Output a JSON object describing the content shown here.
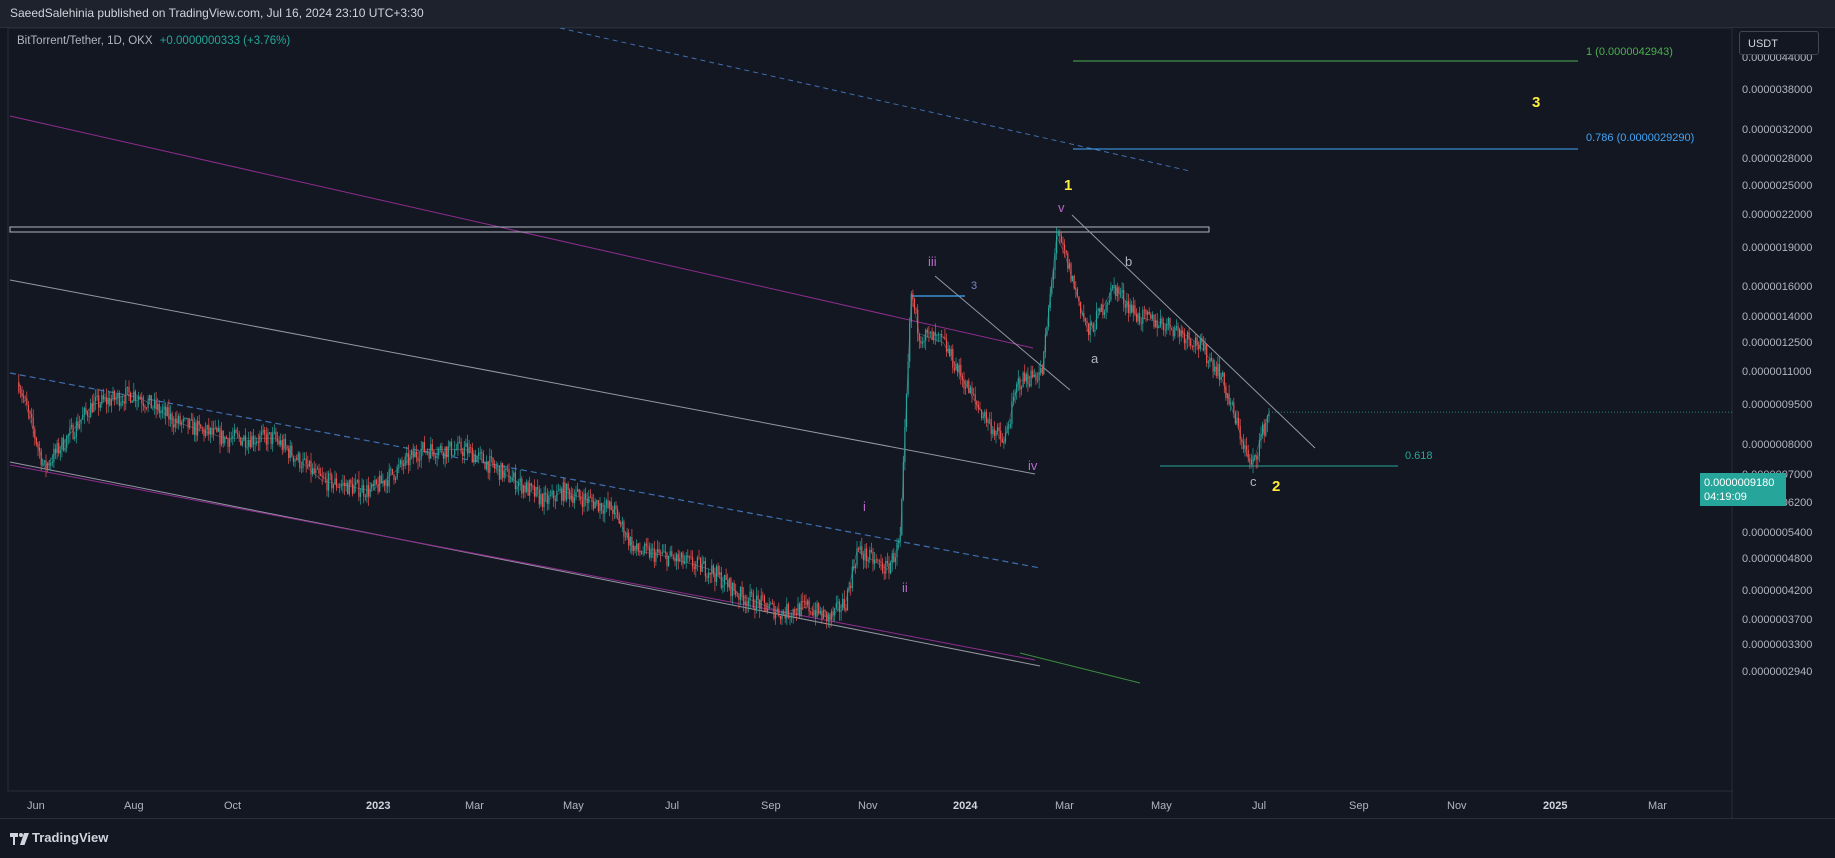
{
  "header": {
    "publish_line": "SaeedSalehinia published on TradingView.com, Jul 16, 2024 23:10 UTC+3:30"
  },
  "legend": {
    "symbol": "BitTorrent/Tether, 1D, OKX",
    "change": "+0.0000000333 (+3.76%)"
  },
  "price_axis": {
    "unit": "USDT",
    "labels": [
      "0.0000044000",
      "0.0000038000",
      "0.0000032000",
      "0.0000028000",
      "0.0000025000",
      "0.0000022000",
      "0.0000019000",
      "0.0000016000",
      "0.0000014000",
      "0.0000012500",
      "0.0000011000",
      "0.0000009500",
      "0.0000008000",
      "0.0000007000",
      "0.0000006200",
      "0.0000005400",
      "0.0000004800",
      "0.0000004200",
      "0.0000003700",
      "0.0000003300",
      "0.0000002940"
    ]
  },
  "current_price": {
    "value": "0.0000009180",
    "countdown": "04:19:09"
  },
  "time_axis": {
    "labels": [
      "Jun",
      "Aug",
      "Oct",
      "2023",
      "Mar",
      "May",
      "Jul",
      "Sep",
      "Nov",
      "2024",
      "Mar",
      "May",
      "Jul",
      "Sep",
      "Nov",
      "2025",
      "Mar"
    ]
  },
  "fib_levels": [
    {
      "label": "1 (0.0000042943)",
      "color": "#4caf50"
    },
    {
      "label": "0.786 (0.0000029290)",
      "color": "#42a5f5"
    },
    {
      "label": "0.618",
      "color": "#26a69a"
    }
  ],
  "wave_labels": [
    {
      "text": "1",
      "color": "#ffeb3b"
    },
    {
      "text": "2",
      "color": "#ffeb3b"
    },
    {
      "text": "3",
      "color": "#ffeb3b"
    },
    {
      "text": "i",
      "color": "#ba68c8"
    },
    {
      "text": "ii",
      "color": "#ba68c8"
    },
    {
      "text": "iii",
      "color": "#ba68c8"
    },
    {
      "text": "iv",
      "color": "#ba68c8"
    },
    {
      "text": "v",
      "color": "#ba68c8"
    },
    {
      "text": "a",
      "color": "#b2b5be"
    },
    {
      "text": "b",
      "color": "#b2b5be"
    },
    {
      "text": "c",
      "color": "#b2b5be"
    },
    {
      "text": "3",
      "color": "#7986cb"
    }
  ],
  "chart_data": {
    "type": "line",
    "title": "BitTorrent/Tether, 1D, OKX",
    "ylabel": "USDT",
    "yscale": "log",
    "xlim": [
      "2022-05-22",
      "2025-04-20"
    ],
    "ylim": [
      2.7e-07,
      4.9e-06
    ],
    "series": [
      {
        "name": "BitTorrent/Tether",
        "x": [
          "2022-05-25",
          "2022-06-10",
          "2022-07-10",
          "2022-08-05",
          "2022-09-01",
          "2022-10-01",
          "2022-11-01",
          "2022-12-01",
          "2023-01-01",
          "2023-02-01",
          "2023-03-01",
          "2023-04-01",
          "2023-04-20",
          "2023-05-01",
          "2023-06-01",
          "2023-06-15",
          "2023-07-01",
          "2023-08-01",
          "2023-08-20",
          "2023-09-15",
          "2023-10-01",
          "2023-10-15",
          "2023-10-25",
          "2023-11-01",
          "2023-11-20",
          "2023-11-28",
          "2023-12-05",
          "2023-12-10",
          "2023-12-25",
          "2024-01-15",
          "2024-02-01",
          "2024-02-10",
          "2024-02-25",
          "2024-03-05",
          "2024-03-10",
          "2024-03-25",
          "2024-04-10",
          "2024-04-25",
          "2024-05-15",
          "2024-06-01",
          "2024-06-15",
          "2024-07-05",
          "2024-07-16"
        ],
        "values": [
          1.05e-06,
          7.2e-07,
          9.5e-07,
          1e-06,
          8.8e-07,
          8.2e-07,
          8.2e-07,
          6.8e-07,
          6.5e-07,
          7.8e-07,
          7.8e-07,
          6.8e-07,
          6.2e-07,
          6.5e-07,
          6e-07,
          5e-07,
          4.9e-07,
          4.6e-07,
          4.1e-07,
          3.8e-07,
          3.9e-07,
          3.7e-07,
          4e-07,
          5e-07,
          4.6e-07,
          5.2e-07,
          1.55e-06,
          1.3e-06,
          1.25e-06,
          9.5e-07,
          8e-07,
          1.05e-06,
          1.1e-06,
          2e-06,
          1.85e-06,
          1.3e-06,
          1.6e-06,
          1.4e-06,
          1.35e-06,
          1.25e-06,
          1.1e-06,
          7.2e-07,
          9.2e-07
        ]
      }
    ]
  }
}
